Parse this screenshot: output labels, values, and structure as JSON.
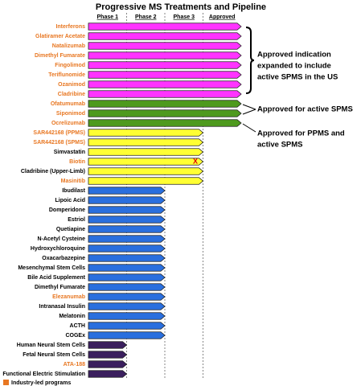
{
  "title": "Progressive MS Treatments and Pipeline",
  "phases": [
    "Phase 1",
    "Phase 2",
    "Phase 3",
    "Approved"
  ],
  "groups": [
    {
      "color": "#ff33ff",
      "stage": 4,
      "rows": [
        {
          "label": "Interferons",
          "industry": true
        },
        {
          "label": "Glatiramer Acetate",
          "industry": true
        },
        {
          "label": "Natalizumab",
          "industry": true
        },
        {
          "label": "Dimethyl Fumarate",
          "industry": true
        },
        {
          "label": "Fingolimod",
          "industry": true
        },
        {
          "label": "Teriflunomide",
          "industry": true
        },
        {
          "label": "Ozanimod",
          "industry": true
        },
        {
          "label": "Cladribine",
          "industry": true
        }
      ]
    },
    {
      "color": "#4e9a1e",
      "stage": 4,
      "rows": [
        {
          "label": "Ofatumumab",
          "industry": true
        },
        {
          "label": "Siponimod",
          "industry": true
        },
        {
          "label": "Ocrelizumab",
          "industry": true
        }
      ]
    },
    {
      "color": "#ffff33",
      "stage": 3,
      "rows": [
        {
          "label": "SAR442168 (PPMS)",
          "industry": true
        },
        {
          "label": "SAR442168 (SPMS)",
          "industry": true
        },
        {
          "label": "Simvastatin",
          "industry": false
        },
        {
          "label": "Biotin",
          "industry": true,
          "marker": "X"
        },
        {
          "label": "Cladribine (Upper-Limb)",
          "industry": false
        },
        {
          "label": "Masinitib",
          "industry": true
        }
      ]
    },
    {
      "color": "#2a6fde",
      "stage": 2,
      "rows": [
        {
          "label": "Ibudilast",
          "industry": false
        },
        {
          "label": "Lipoic Acid",
          "industry": false
        },
        {
          "label": "Domperidone",
          "industry": false
        },
        {
          "label": "Estriol",
          "industry": false
        },
        {
          "label": "Quetiapine",
          "industry": false
        },
        {
          "label": "N-Acetyl Cysteine",
          "industry": false
        },
        {
          "label": "Hydroxychloroquine",
          "industry": false
        },
        {
          "label": "Oxacarbazepine",
          "industry": false
        },
        {
          "label": "Mesenchymal Stem Cells",
          "industry": false
        },
        {
          "label": "Bile Acid Supplement",
          "industry": false
        },
        {
          "label": "Dimethyl Fumarate",
          "industry": false
        },
        {
          "label": "Elezanumab",
          "industry": true
        },
        {
          "label": "Intranasal Insulin",
          "industry": false
        },
        {
          "label": "Melatonin",
          "industry": false
        },
        {
          "label": "ACTH",
          "industry": false
        },
        {
          "label": "COGEx",
          "industry": false
        }
      ]
    },
    {
      "color": "#3b1f5e",
      "stage": 1,
      "rows": [
        {
          "label": "Human Neural Stem Cells",
          "industry": false
        },
        {
          "label": "Fetal Neural Stem Cells",
          "industry": false
        },
        {
          "label": "ATA-188",
          "industry": true
        },
        {
          "label": "Functional Electric Stimulation",
          "industry": false
        }
      ]
    }
  ],
  "annotations": [
    {
      "lines": [
        "Approved indication",
        "expanded to include",
        "active SPMS in the US"
      ]
    },
    {
      "lines": [
        "Approved for active SPMS"
      ]
    },
    {
      "lines": [
        "Approved for PPMS and",
        "active SPMS"
      ]
    }
  ],
  "legend": {
    "label": "Industry-led programs",
    "color": "#e87722"
  }
}
